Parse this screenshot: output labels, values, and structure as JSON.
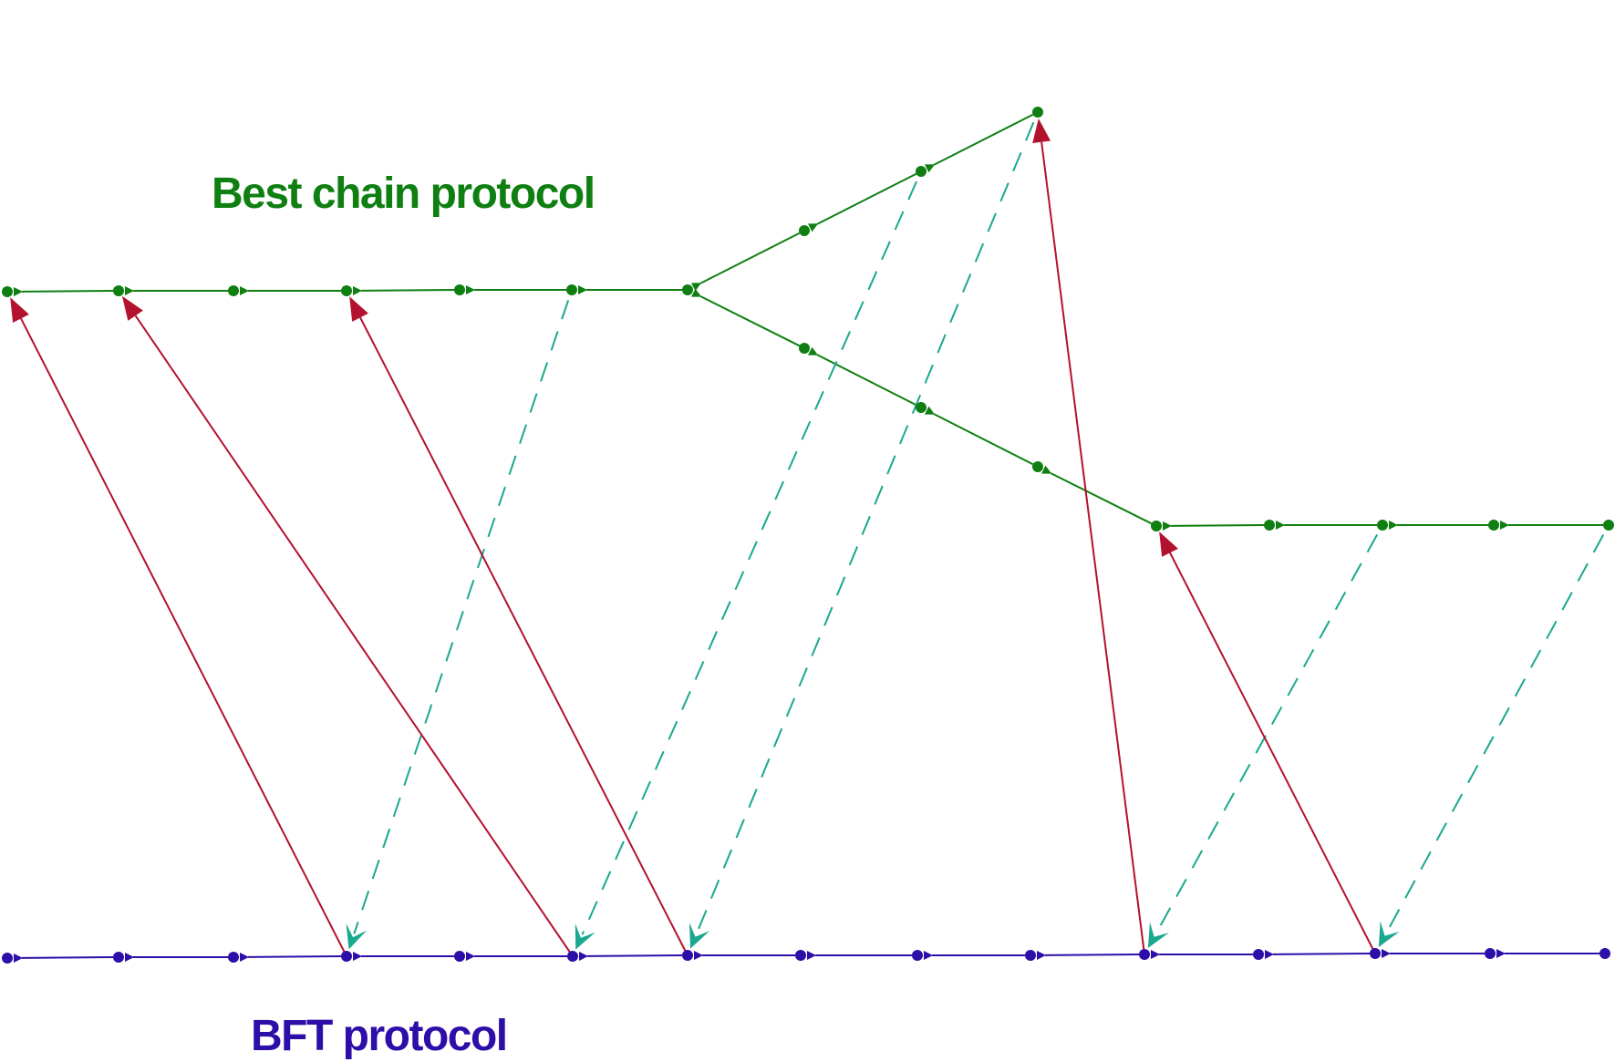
{
  "labels": {
    "best_chain": "Best chain protocol",
    "bft": "BFT protocol"
  },
  "colors": {
    "best_chain": "#0e7f10",
    "bft": "#2e0ea8",
    "reference": "#b3122e",
    "finality": "#1aa88e",
    "background": "#ffffff"
  }
}
